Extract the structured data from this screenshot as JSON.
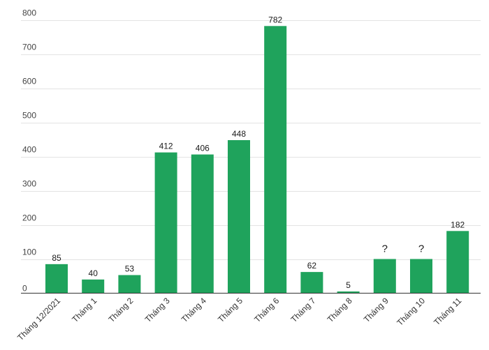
{
  "chart_data": {
    "type": "bar",
    "categories": [
      "Tháng 12/2021",
      "Tháng 1",
      "Tháng 2",
      "Tháng 3",
      "Tháng 4",
      "Tháng 5",
      "Tháng 6",
      "Tháng 7",
      "Tháng 8",
      "Tháng 9",
      "Tháng 10",
      "Tháng 11"
    ],
    "values": [
      85,
      40,
      53,
      412,
      406,
      448,
      782,
      62,
      5,
      100,
      100,
      182
    ],
    "data_labels": [
      "85",
      "40",
      "53",
      "412",
      "406",
      "448",
      "782",
      "62",
      "5",
      "?",
      "?",
      "182"
    ],
    "yticks": [
      0,
      100,
      200,
      300,
      400,
      500,
      600,
      700,
      800
    ],
    "ylim": [
      0,
      800
    ],
    "grid": true,
    "color": "#1fa35c",
    "title": "",
    "xlabel": "",
    "ylabel": ""
  }
}
